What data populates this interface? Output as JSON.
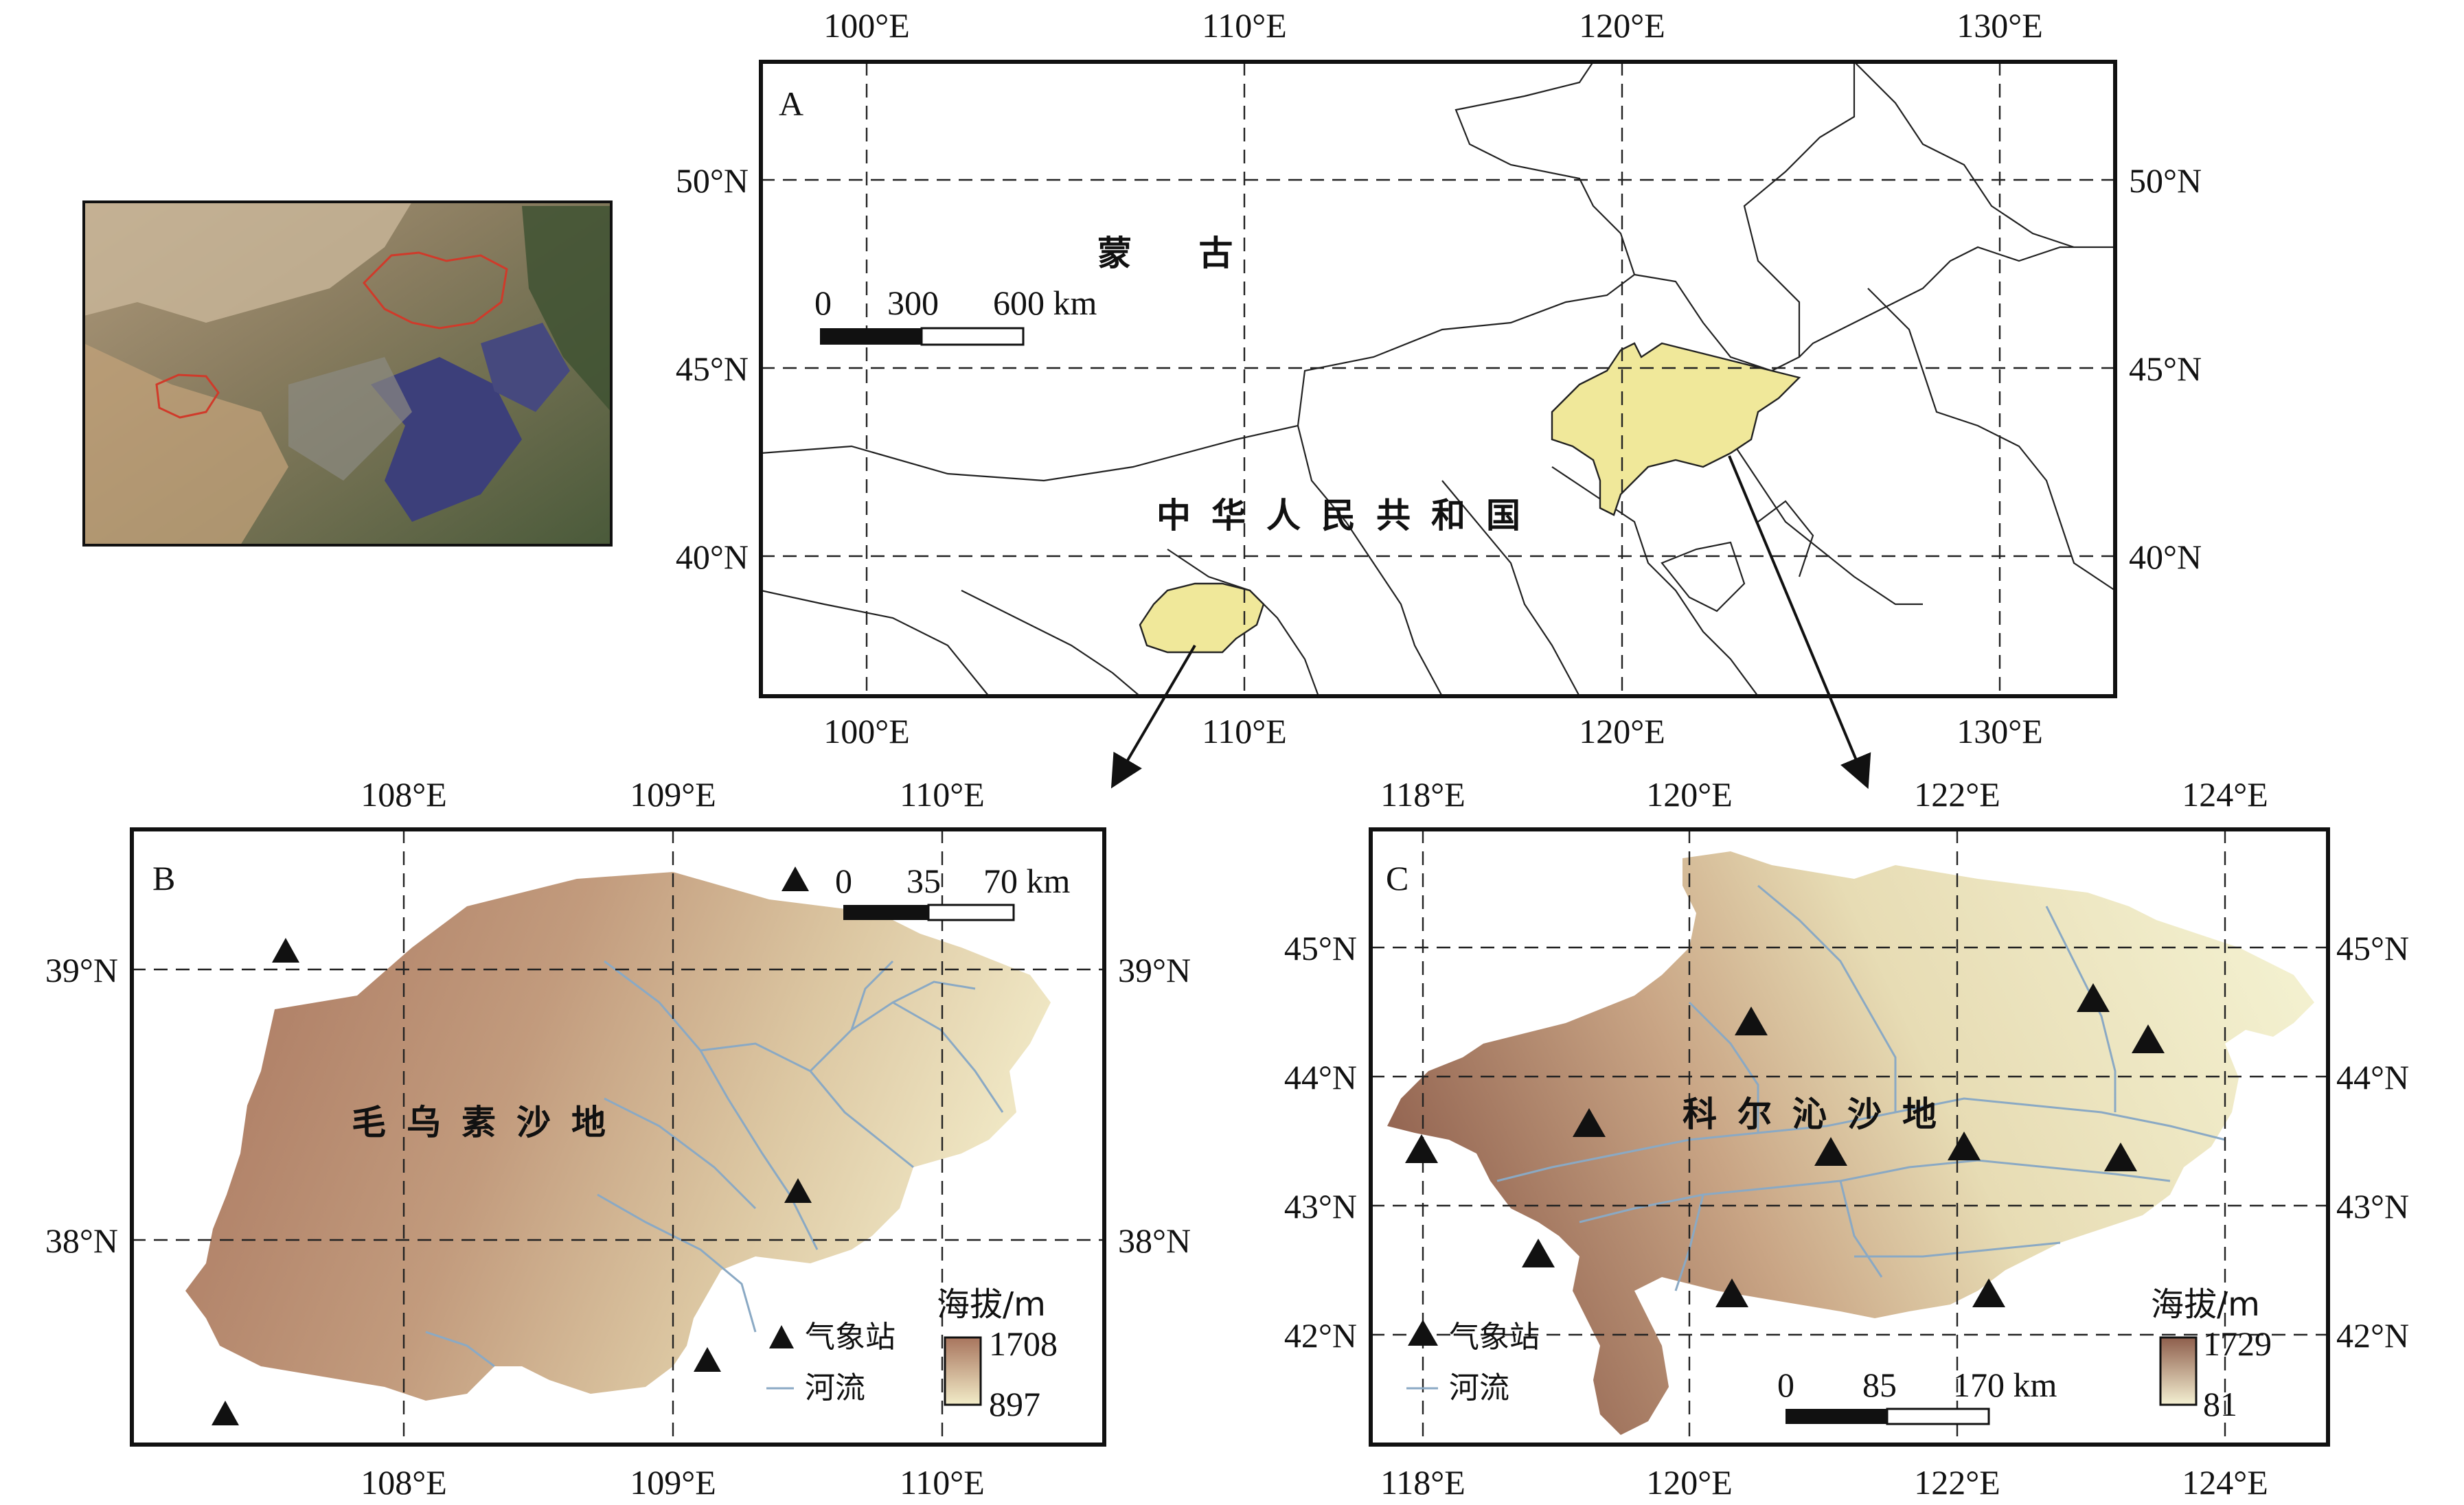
{
  "inset": {
    "description_colors": {
      "land": "#7d7a5e",
      "sea": "#3c3f7a",
      "outline": "#c0392b"
    }
  },
  "panelA": {
    "letter": "A",
    "top_ticks": [
      "100°E",
      "110°E",
      "120°E",
      "130°E"
    ],
    "bottom_ticks": [
      "100°E",
      "110°E",
      "120°E",
      "130°E"
    ],
    "left_ticks": [
      "50°N",
      "45°N",
      "40°N"
    ],
    "right_ticks": [
      "50°N",
      "45°N",
      "40°N"
    ],
    "label_mongolia": "蒙 古",
    "label_china": "中华人民共和国",
    "scale": {
      "zero": "0",
      "mid": "300",
      "end": "600 km"
    },
    "highlight_color": "#f0e89a"
  },
  "panelB": {
    "letter": "B",
    "top_ticks": [
      "108°E",
      "109°E",
      "110°E"
    ],
    "bottom_ticks": [
      "108°E",
      "109°E",
      "110°E"
    ],
    "left_ticks": [
      "39°N",
      "38°N"
    ],
    "right_ticks": [
      "39°N",
      "38°N"
    ],
    "region_name": "毛乌素沙地",
    "scale": {
      "zero": "0",
      "mid": "35",
      "end": "70 km"
    },
    "legend": {
      "station": "气象站",
      "river": "河流"
    },
    "elevation": {
      "title": "海拔/m",
      "max": "1708",
      "min": "897"
    }
  },
  "panelC": {
    "letter": "C",
    "top_ticks": [
      "118°E",
      "120°E",
      "122°E",
      "124°E"
    ],
    "bottom_ticks": [
      "118°E",
      "120°E",
      "122°E",
      "124°E"
    ],
    "left_ticks": [
      "45°N",
      "44°N",
      "43°N",
      "42°N"
    ],
    "right_ticks": [
      "45°N",
      "44°N",
      "43°N",
      "42°N"
    ],
    "region_name": "科尔沁沙地",
    "scale": {
      "zero": "0",
      "mid": "85",
      "end": "170 km"
    },
    "legend": {
      "station": "气象站",
      "river": "河流"
    },
    "elevation": {
      "title": "海拔/m",
      "max": "1729",
      "min": "81"
    }
  },
  "colors": {
    "elev_high": "#9a6b55",
    "elev_low": "#f2ecc8",
    "river": "#8aa9c4"
  }
}
